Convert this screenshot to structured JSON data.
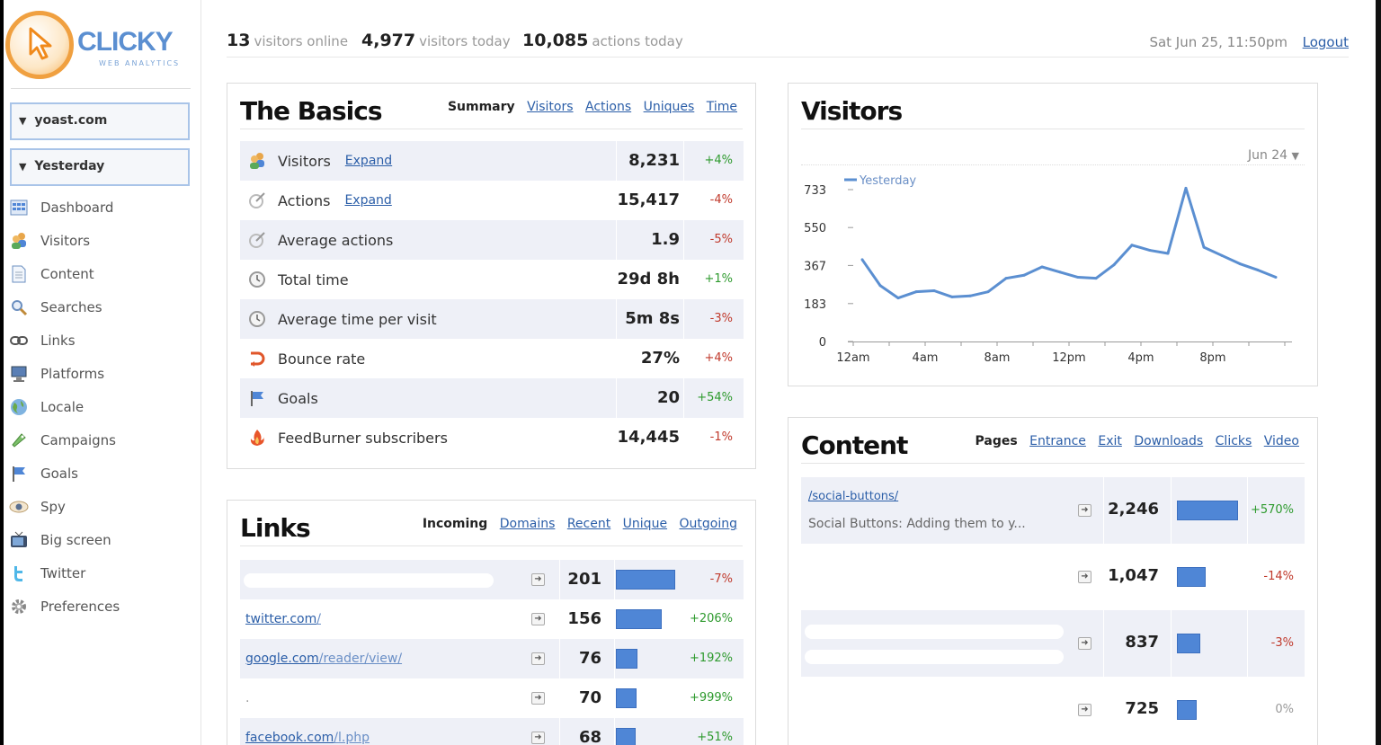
{
  "logo": {
    "name": "CLICKY",
    "tagline": "WEB ANALYTICS"
  },
  "sidebar": {
    "site_select": "yoast.com",
    "date_select": "Yesterday",
    "items": [
      {
        "label": "Dashboard",
        "icon": "dashboard-icon"
      },
      {
        "label": "Visitors",
        "icon": "visitors-icon"
      },
      {
        "label": "Content",
        "icon": "content-icon"
      },
      {
        "label": "Searches",
        "icon": "search-icon"
      },
      {
        "label": "Links",
        "icon": "link-icon"
      },
      {
        "label": "Platforms",
        "icon": "monitor-icon"
      },
      {
        "label": "Locale",
        "icon": "globe-icon"
      },
      {
        "label": "Campaigns",
        "icon": "campaign-icon"
      },
      {
        "label": "Goals",
        "icon": "flag-icon"
      },
      {
        "label": "Spy",
        "icon": "eye-icon"
      },
      {
        "label": "Big screen",
        "icon": "tv-icon"
      },
      {
        "label": "Twitter",
        "icon": "twitter-icon"
      },
      {
        "label": "Preferences",
        "icon": "gear-icon"
      }
    ]
  },
  "topbar": {
    "online_count": "13",
    "online_label": "visitors online",
    "visitors_count": "4,977",
    "visitors_label": "visitors today",
    "actions_count": "10,085",
    "actions_label": "actions today",
    "datetime": "Sat Jun 25, 11:50pm",
    "logout": "Logout"
  },
  "basics": {
    "title": "The Basics",
    "tabs": [
      "Summary",
      "Visitors",
      "Actions",
      "Uniques",
      "Time"
    ],
    "expand_label": "Expand",
    "rows": [
      {
        "label": "Visitors",
        "value": "8,231",
        "change": "+4%",
        "expand": true
      },
      {
        "label": "Actions",
        "value": "15,417",
        "change": "-4%",
        "expand": true
      },
      {
        "label": "Average actions",
        "value": "1.9",
        "change": "-5%",
        "expand": false
      },
      {
        "label": "Total time",
        "value": "29d 8h",
        "change": "+1%",
        "expand": false
      },
      {
        "label": "Average time per visit",
        "value": "5m 8s",
        "change": "-3%",
        "expand": false
      },
      {
        "label": "Bounce rate",
        "value": "27%",
        "change": "+4%",
        "expand": false
      },
      {
        "label": "Goals",
        "value": "20",
        "change": "+54%",
        "expand": false
      },
      {
        "label": "FeedBurner subscribers",
        "value": "14,445",
        "change": "-1%",
        "expand": false
      }
    ]
  },
  "links": {
    "title": "Links",
    "tabs": [
      "Incoming",
      "Domains",
      "Recent",
      "Unique",
      "Outgoing"
    ],
    "rows": [
      {
        "domain": "",
        "path": "",
        "value": "201",
        "share": 0.97,
        "change": "-7%"
      },
      {
        "domain": "twitter.com",
        "path": "/",
        "value": "156",
        "share": 0.75,
        "change": "+206%"
      },
      {
        "domain": "google.com",
        "path": "/reader/view/",
        "value": "76",
        "share": 0.36,
        "change": "+192%"
      },
      {
        "domain": ".",
        "path": "",
        "value": "70",
        "share": 0.34,
        "change": "+999%"
      },
      {
        "domain": "facebook.com",
        "path": "/l.php",
        "value": "68",
        "share": 0.33,
        "change": "+51%"
      }
    ]
  },
  "visitors_chart": {
    "title": "Visitors",
    "date_select": "Jun 24"
  },
  "content": {
    "title": "Content",
    "tabs": [
      "Pages",
      "Entrance",
      "Exit",
      "Downloads",
      "Clicks",
      "Video"
    ],
    "rows": [
      {
        "path": "/social-buttons/",
        "page_title": "Social Buttons: Adding them to y...",
        "value": "2,246",
        "share": 1.0,
        "change": "+570%"
      },
      {
        "path": "",
        "page_title": "",
        "value": "1,047",
        "share": 0.47,
        "change": "-14%"
      },
      {
        "path": "",
        "page_title": "",
        "value": "837",
        "share": 0.38,
        "change": "-3%"
      },
      {
        "path": "",
        "page_title": "",
        "value": "725",
        "share": 0.33,
        "change": "0%"
      }
    ]
  },
  "colors": {
    "accent": "#2b5ea8",
    "bar": "#4f86d6",
    "positive": "#2e9a2e",
    "negative": "#c0392b",
    "line": "#5b8fd1"
  },
  "chart_data": {
    "type": "line",
    "title": "",
    "xlabel": "",
    "ylabel": "",
    "x_ticks": [
      "12am",
      "4am",
      "8am",
      "12pm",
      "4pm",
      "8pm"
    ],
    "y_ticks": [
      "0",
      "183",
      "367",
      "550",
      "733"
    ],
    "ylim": [
      0,
      733
    ],
    "legend": "top-left",
    "series": [
      {
        "name": "Yesterday",
        "x": [
          0,
          1,
          2,
          3,
          4,
          5,
          6,
          7,
          8,
          9,
          10,
          11,
          12,
          13,
          14,
          15,
          16,
          17,
          18,
          19,
          20,
          21,
          22,
          23
        ],
        "values": [
          395,
          270,
          210,
          240,
          245,
          215,
          220,
          240,
          305,
          320,
          360,
          335,
          310,
          305,
          370,
          465,
          440,
          425,
          740,
          455,
          415,
          375,
          345,
          310
        ]
      }
    ]
  }
}
